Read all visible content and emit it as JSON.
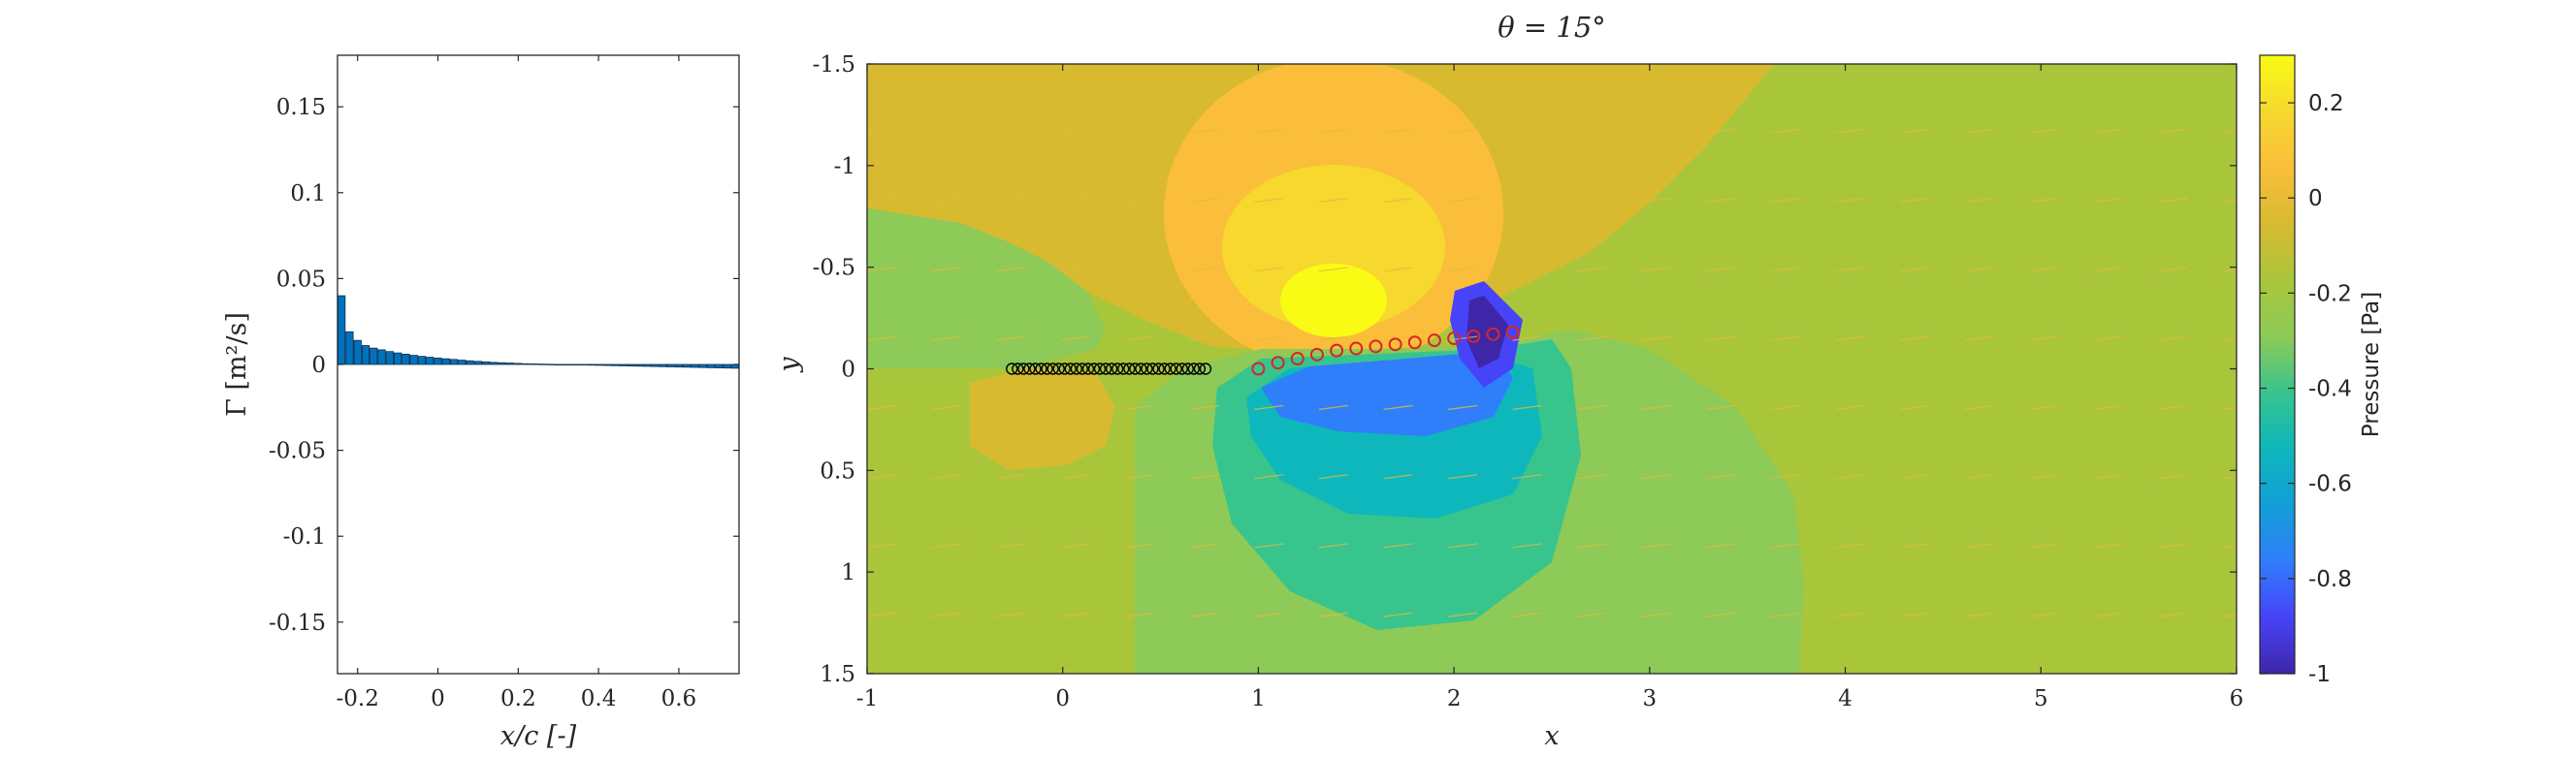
{
  "chart_data": [
    {
      "type": "bar",
      "title": "",
      "xlabel": "x/c [-]",
      "ylabel": "Γ [m²/s]",
      "xlim": [
        -0.25,
        0.75
      ],
      "ylim": [
        -0.18,
        0.18
      ],
      "xticks": [
        "-0.2",
        "0",
        "0.2",
        "0.4",
        "0.6"
      ],
      "xtick_values": [
        -0.2,
        0,
        0.2,
        0.4,
        0.6
      ],
      "yticks": [
        "-0.15",
        "-0.1",
        "-0.05",
        "0",
        "0.05",
        "0.1",
        "0.15"
      ],
      "ytick_values": [
        -0.15,
        -0.1,
        -0.05,
        0,
        0.05,
        0.1,
        0.15
      ],
      "bar_color": "#0072BD",
      "x": [
        -0.24,
        -0.22,
        -0.2,
        -0.18,
        -0.16,
        -0.14,
        -0.12,
        -0.1,
        -0.08,
        -0.06,
        -0.04,
        -0.02,
        0.0,
        0.02,
        0.04,
        0.06,
        0.08,
        0.1,
        0.12,
        0.14,
        0.16,
        0.18,
        0.2,
        0.22,
        0.24,
        0.26,
        0.28,
        0.3,
        0.32,
        0.34,
        0.36,
        0.38,
        0.4,
        0.42,
        0.44,
        0.46,
        0.48,
        0.5,
        0.52,
        0.54,
        0.56,
        0.58,
        0.6,
        0.62,
        0.64,
        0.66,
        0.68,
        0.7,
        0.72,
        0.74
      ],
      "values": [
        0.04,
        0.019,
        0.014,
        0.011,
        0.0095,
        0.0085,
        0.0075,
        0.0067,
        0.006,
        0.0053,
        0.0047,
        0.0042,
        0.0037,
        0.0033,
        0.0029,
        0.0025,
        0.0021,
        0.0018,
        0.0015,
        0.0012,
        0.001,
        0.0008,
        0.0006,
        0.0004,
        0.0003,
        0.0002,
        0.0001,
        0.0,
        -0.0001,
        -0.0002,
        -0.0003,
        -0.0004,
        -0.0005,
        -0.0006,
        -0.0007,
        -0.0008,
        -0.0009,
        -0.001,
        -0.0011,
        -0.0012,
        -0.0013,
        -0.0014,
        -0.0015,
        -0.0016,
        -0.0017,
        -0.0018,
        -0.0019,
        -0.002,
        -0.0021,
        -0.0022
      ]
    },
    {
      "type": "heatmap",
      "title": "θ = 15°",
      "xlabel": "x",
      "ylabel": "y",
      "xlim": [
        -1,
        6
      ],
      "ylim": [
        -1.5,
        1.5
      ],
      "y_reversed": true,
      "xticks": [
        "-1",
        "0",
        "1",
        "2",
        "3",
        "4",
        "5",
        "6"
      ],
      "xtick_values": [
        -1,
        0,
        1,
        2,
        3,
        4,
        5,
        6
      ],
      "yticks": [
        "-1.5",
        "-1",
        "-0.5",
        "0",
        "0.5",
        "1",
        "1.5"
      ],
      "ytick_values": [
        -1.5,
        -1,
        -0.5,
        0,
        0.5,
        1,
        1.5
      ],
      "colorbar": {
        "label": "Pressure [Pa]",
        "range": [
          -1,
          0.3
        ],
        "ticks": [
          "0.2",
          "0",
          "-0.2",
          "-0.4",
          "-0.6",
          "-0.8",
          "-1"
        ],
        "tick_values": [
          0.2,
          0,
          -0.2,
          -0.4,
          -0.6,
          -0.8,
          -1
        ],
        "colormap": "parula",
        "stops": [
          "#3E26A8",
          "#4743F8",
          "#2F7EFA",
          "#139FD6",
          "#0EB7BB",
          "#38C48D",
          "#8DCA57",
          "#A9C63B",
          "#D7BA30",
          "#FBBE3B",
          "#F6D82E",
          "#F9FB15"
        ]
      },
      "wake_markers": {
        "color": "#000000",
        "y": 0,
        "x": [
          -0.26,
          -0.23,
          -0.2,
          -0.17,
          -0.14,
          -0.11,
          -0.08,
          -0.05,
          -0.02,
          0.01,
          0.04,
          0.07,
          0.1,
          0.13,
          0.16,
          0.19,
          0.22,
          0.25,
          0.28,
          0.31,
          0.34,
          0.37,
          0.4,
          0.43,
          0.46,
          0.49,
          0.52,
          0.55,
          0.58,
          0.61,
          0.64,
          0.67,
          0.7,
          0.73
        ]
      },
      "airfoil_markers": {
        "color": "#D62728",
        "x": [
          1.0,
          1.1,
          1.2,
          1.3,
          1.4,
          1.5,
          1.6,
          1.7,
          1.8,
          1.9,
          2.0,
          2.1,
          2.2,
          2.3
        ],
        "y": [
          0.0,
          -0.03,
          -0.05,
          -0.07,
          -0.09,
          -0.1,
          -0.11,
          -0.12,
          -0.13,
          -0.14,
          -0.15,
          -0.16,
          -0.17,
          -0.18
        ]
      },
      "quiver_color": "#E8B83C"
    }
  ]
}
